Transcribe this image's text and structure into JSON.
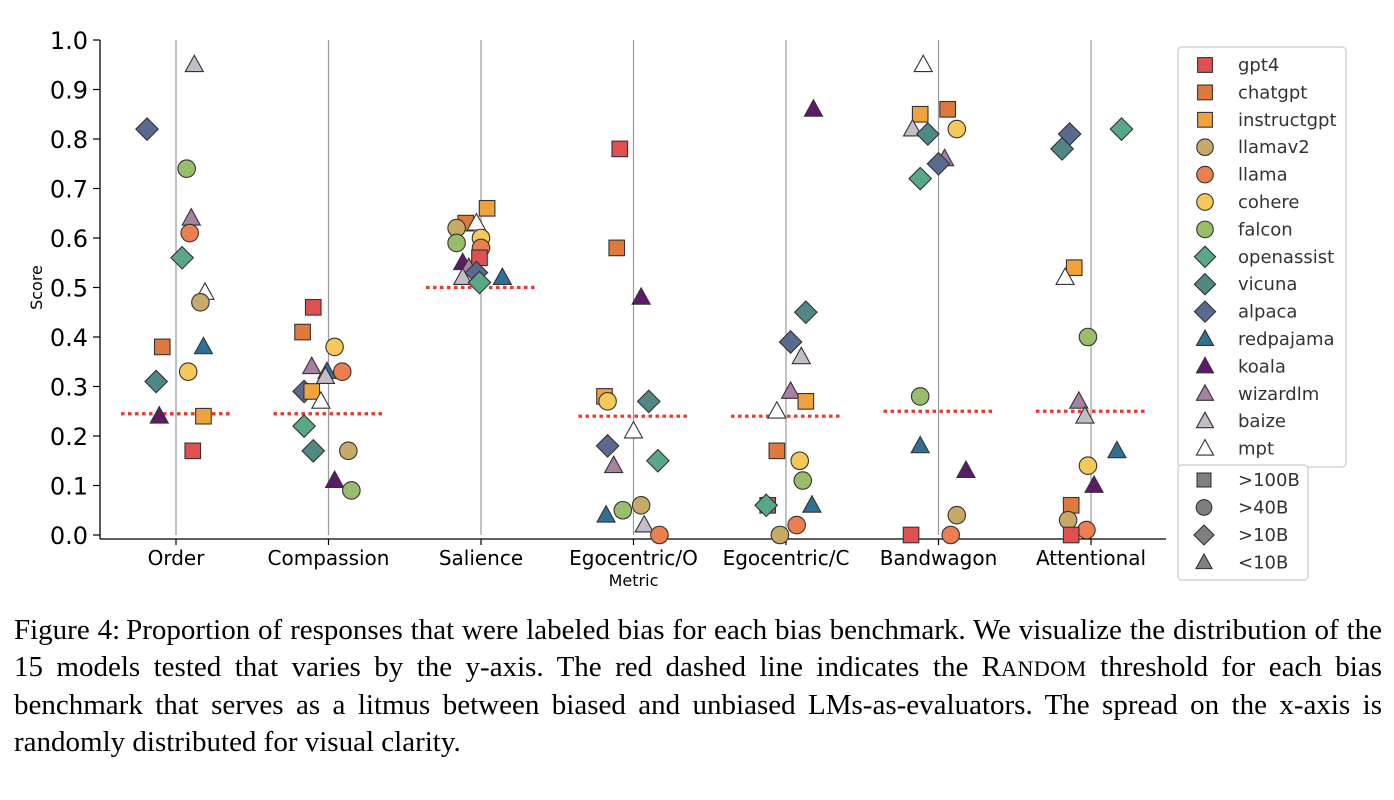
{
  "chart_data": {
    "type": "scatter",
    "ylabel": "Score",
    "xlabel": "Metric",
    "ylim": [
      0,
      1.0
    ],
    "yticks": [
      "0.0",
      "0.1",
      "0.2",
      "0.3",
      "0.4",
      "0.5",
      "0.6",
      "0.7",
      "0.8",
      "0.9",
      "1.0"
    ],
    "categories": [
      "Order",
      "Compassion",
      "Salience",
      "Egocentric/O",
      "Egocentric/C",
      "Bandwagon",
      "Attentional"
    ],
    "random_threshold": [
      0.245,
      0.245,
      0.5,
      0.24,
      0.24,
      0.25,
      0.25
    ],
    "grid": "vertical lines at each category",
    "legend_position": "right",
    "models": [
      {
        "name": "gpt4",
        "color": "#e05050",
        "marker": "square"
      },
      {
        "name": "chatgpt",
        "color": "#e07a3c",
        "marker": "square"
      },
      {
        "name": "instructgpt",
        "color": "#f0a23c",
        "marker": "square"
      },
      {
        "name": "llamav2",
        "color": "#c8aa68",
        "marker": "circle"
      },
      {
        "name": "llama",
        "color": "#ec7f50",
        "marker": "circle"
      },
      {
        "name": "cohere",
        "color": "#f5c85a",
        "marker": "circle"
      },
      {
        "name": "falcon",
        "color": "#98be6c",
        "marker": "circle"
      },
      {
        "name": "openassist",
        "color": "#58a888",
        "marker": "diamond"
      },
      {
        "name": "vicuna",
        "color": "#508884",
        "marker": "diamond"
      },
      {
        "name": "alpaca",
        "color": "#5a6a8e",
        "marker": "diamond"
      },
      {
        "name": "redpajama",
        "color": "#2f7094",
        "marker": "triangle"
      },
      {
        "name": "koala",
        "color": "#5e1a6a",
        "marker": "triangle"
      },
      {
        "name": "wizardlm",
        "color": "#a880a0",
        "marker": "triangle"
      },
      {
        "name": "baize",
        "color": "#c4bcc8",
        "marker": "triangle"
      },
      {
        "name": "mpt",
        "color": "#ffffff",
        "marker": "triangle"
      }
    ],
    "size_legend": [
      {
        "label": ">100B",
        "marker": "square"
      },
      {
        "label": ">40B",
        "marker": "circle"
      },
      {
        "label": ">10B",
        "marker": "diamond"
      },
      {
        "label": "<10B",
        "marker": "triangle"
      }
    ],
    "points": [
      {
        "model": "alpaca",
        "category": "Order",
        "jitter": -0.19,
        "y": 0.82
      },
      {
        "model": "baize",
        "category": "Order",
        "jitter": 0.12,
        "y": 0.95
      },
      {
        "model": "falcon",
        "category": "Order",
        "jitter": 0.07,
        "y": 0.74
      },
      {
        "model": "wizardlm",
        "category": "Order",
        "jitter": 0.1,
        "y": 0.64
      },
      {
        "model": "llama",
        "category": "Order",
        "jitter": 0.09,
        "y": 0.61
      },
      {
        "model": "openassist",
        "category": "Order",
        "jitter": 0.04,
        "y": 0.56
      },
      {
        "model": "mpt",
        "category": "Order",
        "jitter": 0.19,
        "y": 0.49
      },
      {
        "model": "llamav2",
        "category": "Order",
        "jitter": 0.16,
        "y": 0.47
      },
      {
        "model": "chatgpt",
        "category": "Order",
        "jitter": -0.09,
        "y": 0.38
      },
      {
        "model": "redpajama",
        "category": "Order",
        "jitter": 0.18,
        "y": 0.38
      },
      {
        "model": "cohere",
        "category": "Order",
        "jitter": 0.08,
        "y": 0.33
      },
      {
        "model": "vicuna",
        "category": "Order",
        "jitter": -0.13,
        "y": 0.31
      },
      {
        "model": "koala",
        "category": "Order",
        "jitter": -0.11,
        "y": 0.24
      },
      {
        "model": "instructgpt",
        "category": "Order",
        "jitter": 0.18,
        "y": 0.24
      },
      {
        "model": "gpt4",
        "category": "Order",
        "jitter": 0.11,
        "y": 0.17
      },
      {
        "model": "gpt4",
        "category": "Compassion",
        "jitter": -0.1,
        "y": 0.46
      },
      {
        "model": "chatgpt",
        "category": "Compassion",
        "jitter": -0.17,
        "y": 0.41
      },
      {
        "model": "cohere",
        "category": "Compassion",
        "jitter": 0.04,
        "y": 0.38
      },
      {
        "model": "wizardlm",
        "category": "Compassion",
        "jitter": -0.11,
        "y": 0.34
      },
      {
        "model": "redpajama",
        "category": "Compassion",
        "jitter": -0.01,
        "y": 0.33
      },
      {
        "model": "llama",
        "category": "Compassion",
        "jitter": 0.09,
        "y": 0.33
      },
      {
        "model": "baize",
        "category": "Compassion",
        "jitter": -0.02,
        "y": 0.32
      },
      {
        "model": "alpaca",
        "category": "Compassion",
        "jitter": -0.16,
        "y": 0.29
      },
      {
        "model": "instructgpt",
        "category": "Compassion",
        "jitter": -0.11,
        "y": 0.29
      },
      {
        "model": "mpt",
        "category": "Compassion",
        "jitter": -0.05,
        "y": 0.27
      },
      {
        "model": "openassist",
        "category": "Compassion",
        "jitter": -0.16,
        "y": 0.22
      },
      {
        "model": "vicuna",
        "category": "Compassion",
        "jitter": -0.1,
        "y": 0.17
      },
      {
        "model": "llamav2",
        "category": "Compassion",
        "jitter": 0.13,
        "y": 0.17
      },
      {
        "model": "koala",
        "category": "Compassion",
        "jitter": 0.04,
        "y": 0.11
      },
      {
        "model": "falcon",
        "category": "Compassion",
        "jitter": 0.15,
        "y": 0.09
      },
      {
        "model": "instructgpt",
        "category": "Salience",
        "jitter": 0.04,
        "y": 0.66
      },
      {
        "model": "chatgpt",
        "category": "Salience",
        "jitter": -0.1,
        "y": 0.63
      },
      {
        "model": "mpt",
        "category": "Salience",
        "jitter": -0.03,
        "y": 0.63
      },
      {
        "model": "llamav2",
        "category": "Salience",
        "jitter": -0.16,
        "y": 0.62
      },
      {
        "model": "cohere",
        "category": "Salience",
        "jitter": 0.0,
        "y": 0.6
      },
      {
        "model": "falcon",
        "category": "Salience",
        "jitter": -0.16,
        "y": 0.59
      },
      {
        "model": "llama",
        "category": "Salience",
        "jitter": 0.0,
        "y": 0.58
      },
      {
        "model": "gpt4",
        "category": "Salience",
        "jitter": -0.01,
        "y": 0.56
      },
      {
        "model": "koala",
        "category": "Salience",
        "jitter": -0.12,
        "y": 0.55
      },
      {
        "model": "wizardlm",
        "category": "Salience",
        "jitter": -0.08,
        "y": 0.54
      },
      {
        "model": "alpaca",
        "category": "Salience",
        "jitter": -0.03,
        "y": 0.53
      },
      {
        "model": "baize",
        "category": "Salience",
        "jitter": -0.12,
        "y": 0.52
      },
      {
        "model": "redpajama",
        "category": "Salience",
        "jitter": 0.14,
        "y": 0.52
      },
      {
        "model": "openassist",
        "category": "Salience",
        "jitter": -0.01,
        "y": 0.51
      },
      {
        "model": "gpt4",
        "category": "Egocentric/O",
        "jitter": -0.09,
        "y": 0.78
      },
      {
        "model": "chatgpt",
        "category": "Egocentric/O",
        "jitter": -0.11,
        "y": 0.58
      },
      {
        "model": "koala",
        "category": "Egocentric/O",
        "jitter": 0.05,
        "y": 0.48
      },
      {
        "model": "instructgpt",
        "category": "Egocentric/O",
        "jitter": -0.19,
        "y": 0.28
      },
      {
        "model": "cohere",
        "category": "Egocentric/O",
        "jitter": -0.17,
        "y": 0.27
      },
      {
        "model": "vicuna",
        "category": "Egocentric/O",
        "jitter": 0.1,
        "y": 0.27
      },
      {
        "model": "mpt",
        "category": "Egocentric/O",
        "jitter": 0.0,
        "y": 0.21
      },
      {
        "model": "alpaca",
        "category": "Egocentric/O",
        "jitter": -0.17,
        "y": 0.18
      },
      {
        "model": "openassist",
        "category": "Egocentric/O",
        "jitter": 0.16,
        "y": 0.15
      },
      {
        "model": "wizardlm",
        "category": "Egocentric/O",
        "jitter": -0.13,
        "y": 0.14
      },
      {
        "model": "llamav2",
        "category": "Egocentric/O",
        "jitter": 0.05,
        "y": 0.06
      },
      {
        "model": "falcon",
        "category": "Egocentric/O",
        "jitter": -0.07,
        "y": 0.05
      },
      {
        "model": "redpajama",
        "category": "Egocentric/O",
        "jitter": -0.18,
        "y": 0.04
      },
      {
        "model": "baize",
        "category": "Egocentric/O",
        "jitter": 0.07,
        "y": 0.02
      },
      {
        "model": "llama",
        "category": "Egocentric/O",
        "jitter": 0.17,
        "y": 0.0
      },
      {
        "model": "koala",
        "category": "Egocentric/C",
        "jitter": 0.18,
        "y": 0.86
      },
      {
        "model": "vicuna",
        "category": "Egocentric/C",
        "jitter": 0.13,
        "y": 0.45
      },
      {
        "model": "alpaca",
        "category": "Egocentric/C",
        "jitter": 0.03,
        "y": 0.39
      },
      {
        "model": "baize",
        "category": "Egocentric/C",
        "jitter": 0.1,
        "y": 0.36
      },
      {
        "model": "wizardlm",
        "category": "Egocentric/C",
        "jitter": 0.03,
        "y": 0.29
      },
      {
        "model": "instructgpt",
        "category": "Egocentric/C",
        "jitter": 0.13,
        "y": 0.27
      },
      {
        "model": "mpt",
        "category": "Egocentric/C",
        "jitter": -0.06,
        "y": 0.25
      },
      {
        "model": "chatgpt",
        "category": "Egocentric/C",
        "jitter": -0.06,
        "y": 0.17
      },
      {
        "model": "cohere",
        "category": "Egocentric/C",
        "jitter": 0.09,
        "y": 0.15
      },
      {
        "model": "falcon",
        "category": "Egocentric/C",
        "jitter": 0.11,
        "y": 0.11
      },
      {
        "model": "gpt4",
        "category": "Egocentric/C",
        "jitter": -0.12,
        "y": 0.06
      },
      {
        "model": "openassist",
        "category": "Egocentric/C",
        "jitter": -0.13,
        "y": 0.06
      },
      {
        "model": "redpajama",
        "category": "Egocentric/C",
        "jitter": 0.17,
        "y": 0.06
      },
      {
        "model": "llama",
        "category": "Egocentric/C",
        "jitter": 0.07,
        "y": 0.02
      },
      {
        "model": "llamav2",
        "category": "Egocentric/C",
        "jitter": -0.04,
        "y": 0.0
      },
      {
        "model": "mpt",
        "category": "Bandwagon",
        "jitter": -0.1,
        "y": 0.95
      },
      {
        "model": "chatgpt",
        "category": "Bandwagon",
        "jitter": 0.06,
        "y": 0.86
      },
      {
        "model": "instructgpt",
        "category": "Bandwagon",
        "jitter": -0.12,
        "y": 0.85
      },
      {
        "model": "baize",
        "category": "Bandwagon",
        "jitter": -0.17,
        "y": 0.82
      },
      {
        "model": "cohere",
        "category": "Bandwagon",
        "jitter": 0.12,
        "y": 0.82
      },
      {
        "model": "vicuna",
        "category": "Bandwagon",
        "jitter": -0.07,
        "y": 0.81
      },
      {
        "model": "wizardlm",
        "category": "Bandwagon",
        "jitter": 0.04,
        "y": 0.76
      },
      {
        "model": "alpaca",
        "category": "Bandwagon",
        "jitter": 0.0,
        "y": 0.75
      },
      {
        "model": "openassist",
        "category": "Bandwagon",
        "jitter": -0.12,
        "y": 0.72
      },
      {
        "model": "falcon",
        "category": "Bandwagon",
        "jitter": -0.12,
        "y": 0.28
      },
      {
        "model": "redpajama",
        "category": "Bandwagon",
        "jitter": -0.12,
        "y": 0.18
      },
      {
        "model": "koala",
        "category": "Bandwagon",
        "jitter": 0.18,
        "y": 0.13
      },
      {
        "model": "llamav2",
        "category": "Bandwagon",
        "jitter": 0.12,
        "y": 0.04
      },
      {
        "model": "gpt4",
        "category": "Bandwagon",
        "jitter": -0.18,
        "y": 0.0
      },
      {
        "model": "llama",
        "category": "Bandwagon",
        "jitter": 0.08,
        "y": 0.0
      },
      {
        "model": "openassist",
        "category": "Attentional",
        "jitter": 0.2,
        "y": 0.82
      },
      {
        "model": "alpaca",
        "category": "Attentional",
        "jitter": -0.14,
        "y": 0.81
      },
      {
        "model": "vicuna",
        "category": "Attentional",
        "jitter": -0.19,
        "y": 0.78
      },
      {
        "model": "instructgpt",
        "category": "Attentional",
        "jitter": -0.11,
        "y": 0.54
      },
      {
        "model": "mpt",
        "category": "Attentional",
        "jitter": -0.17,
        "y": 0.52
      },
      {
        "model": "falcon",
        "category": "Attentional",
        "jitter": -0.02,
        "y": 0.4
      },
      {
        "model": "wizardlm",
        "category": "Attentional",
        "jitter": -0.08,
        "y": 0.27
      },
      {
        "model": "baize",
        "category": "Attentional",
        "jitter": -0.04,
        "y": 0.24
      },
      {
        "model": "redpajama",
        "category": "Attentional",
        "jitter": 0.17,
        "y": 0.17
      },
      {
        "model": "cohere",
        "category": "Attentional",
        "jitter": -0.02,
        "y": 0.14
      },
      {
        "model": "koala",
        "category": "Attentional",
        "jitter": 0.02,
        "y": 0.1
      },
      {
        "model": "chatgpt",
        "category": "Attentional",
        "jitter": -0.13,
        "y": 0.06
      },
      {
        "model": "llamav2",
        "category": "Attentional",
        "jitter": -0.15,
        "y": 0.03
      },
      {
        "model": "llama",
        "category": "Attentional",
        "jitter": -0.03,
        "y": 0.01
      },
      {
        "model": "gpt4",
        "category": "Attentional",
        "jitter": -0.13,
        "y": 0.0
      }
    ]
  },
  "caption": {
    "figure_label": "Figure 4:",
    "text_part1": "Proportion of responses that were labeled bias for each bias benchmark. We visualize the distribution of the 15 models tested that varies by the y-axis. The red dashed line indicates the ",
    "random_first": "R",
    "random_rest": "ANDOM",
    "text_part2": " threshold for each bias benchmark that serves as a litmus between biased and unbiased LMs-as-evaluators. The spread on the x-axis is randomly distributed for visual clarity."
  }
}
